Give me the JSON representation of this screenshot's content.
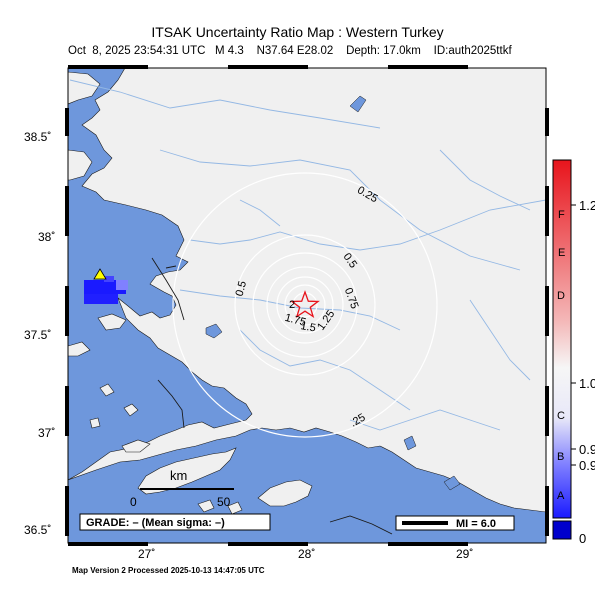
{
  "title": "ITSAK Uncertainty Ratio Map : Western Turkey",
  "subtitle": "Oct  8, 2025 23:54:31 UTC   M 4.3    N37.64 E28.02    Depth: 17.0km    ID:auth2025ttkf",
  "footer": "Map Version 2 Processed 2025-10-13 14:47:05 UTC",
  "lat_labels": [
    "38.5˚",
    "38˚",
    "37.5˚",
    "37˚",
    "36.5˚"
  ],
  "lon_labels": [
    "27˚",
    "28˚",
    "29˚"
  ],
  "contour_labels": [
    "0.25",
    "0.5",
    "0.5",
    "0.75",
    "1.25",
    "1.5",
    "1.75",
    "2",
    ".25"
  ],
  "legend": {
    "grade": "GRADE: – (Mean sigma: –)",
    "mi": "MI = 6.0",
    "scale_unit": "km",
    "scale_start": "0",
    "scale_end": "50"
  },
  "colorbar": {
    "letters": [
      "F",
      "E",
      "D",
      "C",
      "B",
      "A"
    ],
    "values": [
      "1.2",
      "1.0",
      "0.9",
      "0.9",
      "0"
    ],
    "colors": {
      "high": "#e8141c",
      "mid": "#f0f0f0",
      "low": "#1a1aff",
      "bottom": "#0000cc"
    }
  },
  "colors": {
    "sea": "#6e97dc",
    "land": "#f0f0f0",
    "rivers": "#94b8e4",
    "contours": "#ffffff",
    "epicenter": "#e8141c",
    "station": "#ffff00"
  }
}
